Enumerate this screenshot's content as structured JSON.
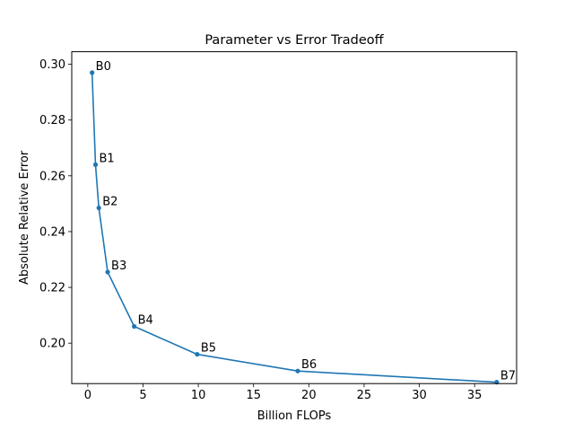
{
  "chart_data": {
    "type": "line",
    "title": "Parameter vs Error Tradeoff",
    "xlabel": "Billion FLOPs",
    "ylabel": "Absolute Relative Error",
    "xlim": [
      -1.45,
      38.8
    ],
    "ylim": [
      0.1855,
      0.3045
    ],
    "xticks": [
      0,
      5,
      10,
      15,
      20,
      25,
      30,
      35
    ],
    "xtick_labels": [
      "0",
      "5",
      "10",
      "15",
      "20",
      "25",
      "30",
      "35"
    ],
    "yticks": [
      0.2,
      0.22,
      0.24,
      0.26,
      0.28,
      0.3
    ],
    "ytick_labels": [
      "0.20",
      "0.22",
      "0.24",
      "0.26",
      "0.28",
      "0.30"
    ],
    "grid": false,
    "legend": "none",
    "series": [
      {
        "color": "#1f77b4",
        "points": [
          {
            "label": "B0",
            "x": 0.39,
            "y": 0.297
          },
          {
            "label": "B1",
            "x": 0.7,
            "y": 0.264
          },
          {
            "label": "B2",
            "x": 1.0,
            "y": 0.2485
          },
          {
            "label": "B3",
            "x": 1.8,
            "y": 0.2255
          },
          {
            "label": "B4",
            "x": 4.2,
            "y": 0.206
          },
          {
            "label": "B5",
            "x": 9.9,
            "y": 0.196
          },
          {
            "label": "B6",
            "x": 19.0,
            "y": 0.19
          },
          {
            "label": "B7",
            "x": 37.0,
            "y": 0.186
          }
        ]
      }
    ]
  }
}
